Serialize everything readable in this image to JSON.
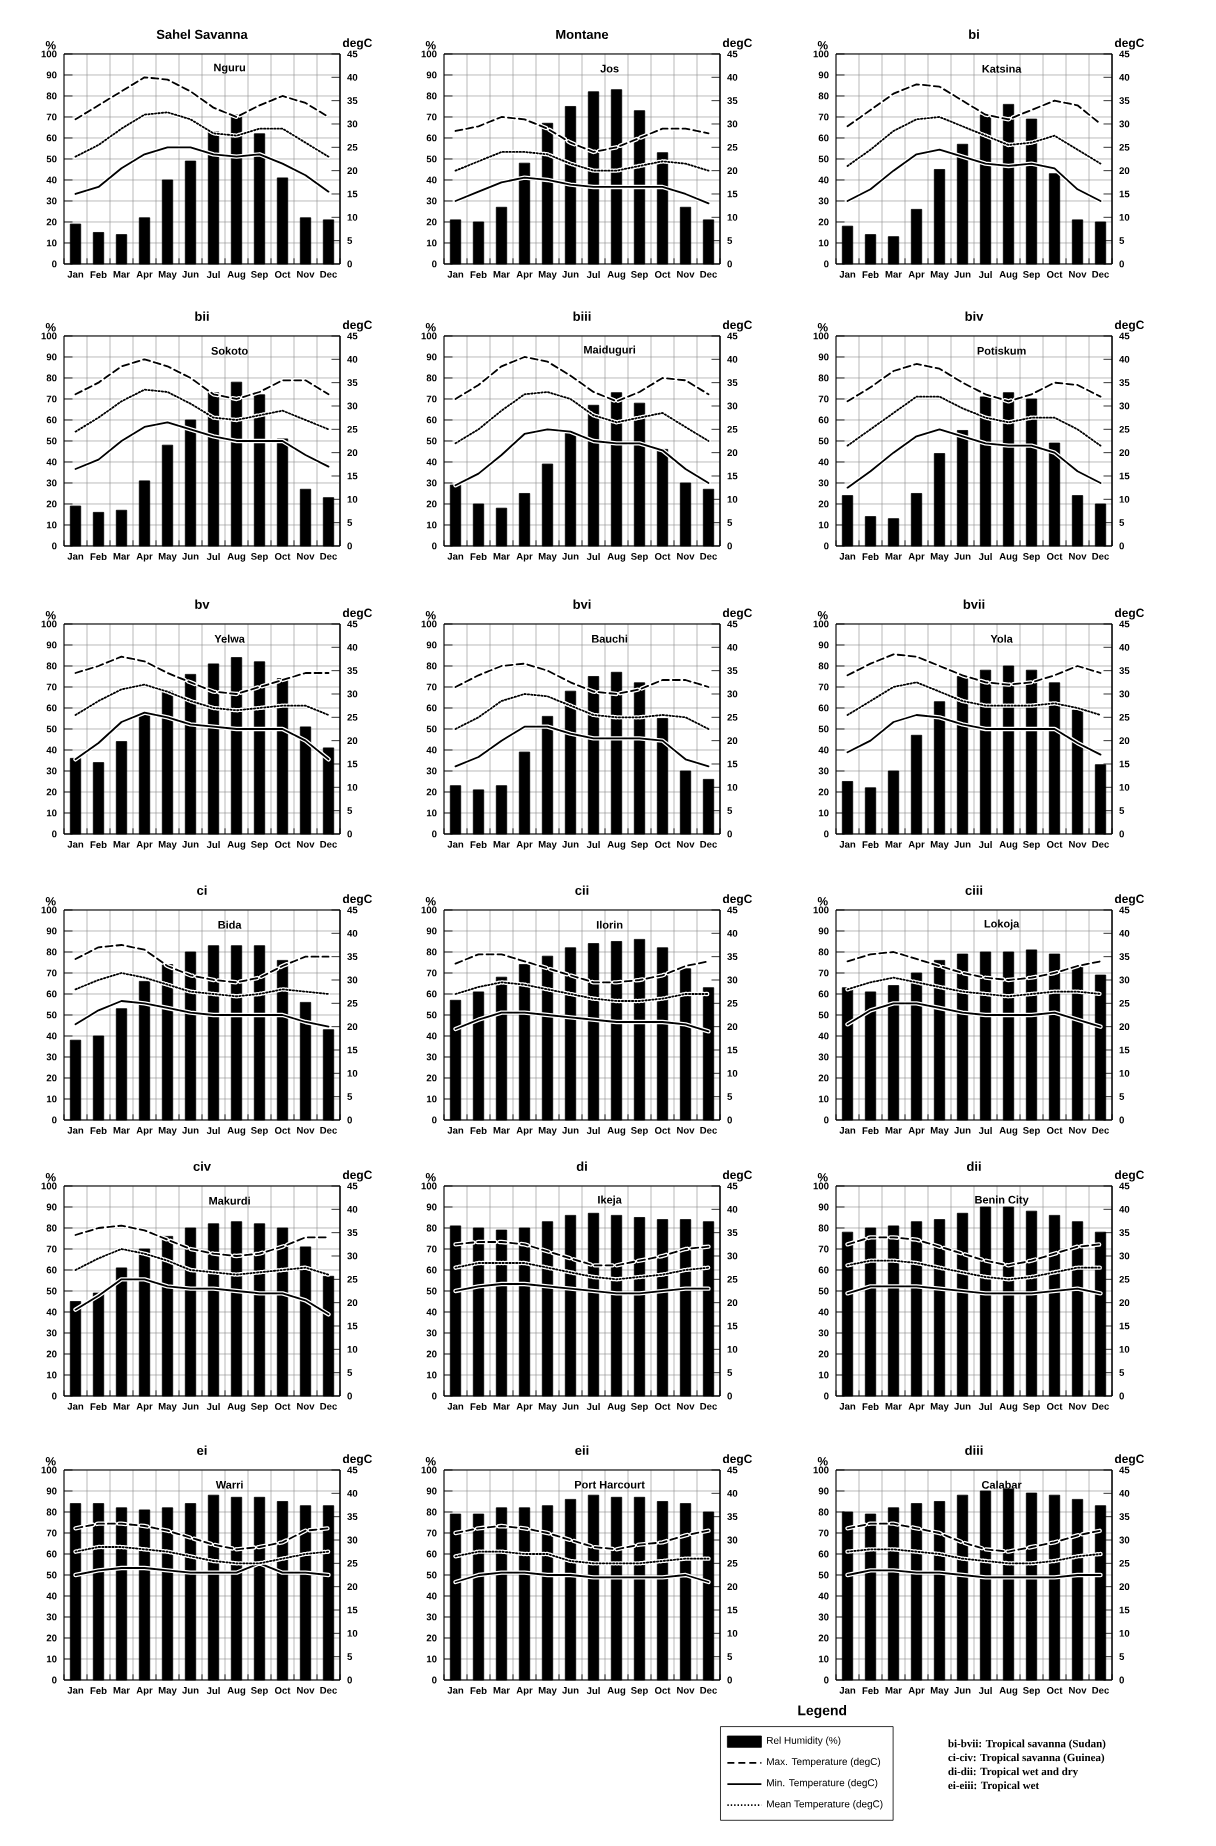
{
  "chart_data": [
    {
      "type": "bar",
      "title": "Sahel Savanna",
      "subtitle": "Nguru",
      "ylabel": "%",
      "y2label": "degC",
      "categories": [
        "Jan",
        "Feb",
        "Mar",
        "Apr",
        "May",
        "Jun",
        "Jul",
        "Aug",
        "Sep",
        "Oct",
        "Nov",
        "Dec"
      ],
      "ylim": [
        0,
        100
      ],
      "yticks": [
        0,
        10,
        20,
        30,
        40,
        50,
        60,
        70,
        80,
        90,
        100
      ],
      "y2lim": [
        0,
        45
      ],
      "y2ticks": [
        0,
        5,
        10,
        15,
        20,
        25,
        30,
        35,
        40,
        45
      ],
      "grid": true,
      "series": [
        {
          "color": "#000000",
          "values": [
            19,
            15,
            14,
            22,
            40,
            49,
            63,
            71,
            62,
            41,
            22,
            21
          ]
        },
        {
          "type": "line",
          "axis": "y2",
          "line_style": "dashed",
          "color": "#000000",
          "values": [
            31,
            34,
            37,
            40,
            39.5,
            37,
            33.5,
            31.5,
            34,
            36,
            34.5,
            31.5
          ]
        },
        {
          "type": "line",
          "axis": "y2",
          "line_style": "solid",
          "color": "#000000",
          "values": [
            15,
            16.5,
            20.5,
            23.5,
            25,
            25,
            23.5,
            23,
            23.5,
            21.5,
            19,
            15.5
          ]
        },
        {
          "type": "line",
          "axis": "y2",
          "line_style": "dotted",
          "color": "#000000",
          "values": [
            23,
            25.5,
            29,
            32,
            32.5,
            31,
            28,
            27.5,
            29,
            29,
            26,
            23
          ]
        }
      ]
    },
    {
      "type": "bar",
      "title": "Montane",
      "subtitle": "Jos",
      "ylabel": "%",
      "y2label": "degC",
      "categories": [
        "Jan",
        "Feb",
        "Mar",
        "Apr",
        "May",
        "Jun",
        "Jul",
        "Aug",
        "Sep",
        "Oct",
        "Nov",
        "Dec"
      ],
      "ylim": [
        0,
        100
      ],
      "yticks": [
        0,
        10,
        20,
        30,
        40,
        50,
        60,
        70,
        80,
        90,
        100
      ],
      "y2lim": [
        0,
        45
      ],
      "y2ticks": [
        0,
        5,
        10,
        15,
        20,
        25,
        30,
        35,
        40,
        45
      ],
      "grid": true,
      "series": [
        {
          "color": "#000000",
          "values": [
            21,
            20,
            27,
            48,
            67,
            75,
            82,
            83,
            73,
            53,
            27,
            21
          ]
        },
        {
          "type": "line",
          "axis": "y2",
          "line_style": "dashed",
          "color": "#000000",
          "values": [
            28.5,
            29.5,
            31.5,
            31,
            29,
            26,
            24,
            25,
            27,
            29,
            29,
            28
          ]
        },
        {
          "type": "line",
          "axis": "y2",
          "line_style": "solid",
          "color": "#000000",
          "values": [
            13.5,
            15.5,
            17.5,
            18.5,
            18,
            17,
            16.5,
            16.5,
            16.5,
            16.5,
            15,
            13
          ]
        },
        {
          "type": "line",
          "axis": "y2",
          "line_style": "dotted",
          "color": "#000000",
          "values": [
            20,
            22,
            24,
            24,
            23.5,
            21.5,
            20,
            20,
            21,
            22,
            21.5,
            20
          ]
        }
      ]
    },
    {
      "type": "bar",
      "title": "bi",
      "subtitle": "Katsina",
      "ylabel": "%",
      "y2label": "degC",
      "categories": [
        "Jan",
        "Feb",
        "Mar",
        "Apr",
        "May",
        "Jun",
        "Jul",
        "Aug",
        "Sep",
        "Oct",
        "Nov",
        "Dec"
      ],
      "ylim": [
        0,
        100
      ],
      "yticks": [
        0,
        10,
        20,
        30,
        40,
        50,
        60,
        70,
        80,
        90,
        100
      ],
      "y2lim": [
        0,
        45
      ],
      "y2ticks": [
        0,
        5,
        10,
        15,
        20,
        25,
        30,
        35,
        40,
        45
      ],
      "grid": true,
      "series": [
        {
          "color": "#000000",
          "values": [
            18,
            14,
            13,
            26,
            45,
            57,
            71,
            76,
            69,
            43,
            21,
            20
          ]
        },
        {
          "type": "line",
          "axis": "y2",
          "line_style": "dashed",
          "color": "#000000",
          "values": [
            29.5,
            33,
            36.5,
            38.5,
            38,
            35,
            32,
            31,
            33,
            35,
            34,
            30
          ]
        },
        {
          "type": "line",
          "axis": "y2",
          "line_style": "solid",
          "color": "#000000",
          "values": [
            13.5,
            16,
            20,
            23.5,
            24.5,
            23,
            21.5,
            21,
            21.5,
            20.5,
            16,
            13.5
          ]
        },
        {
          "type": "line",
          "axis": "y2",
          "line_style": "dotted",
          "color": "#000000",
          "values": [
            21,
            24.5,
            28.5,
            31,
            31.5,
            29.5,
            27.5,
            25.5,
            26,
            27.5,
            24.5,
            21.5
          ]
        }
      ]
    },
    {
      "type": "bar",
      "title": "bii",
      "subtitle": "Sokoto",
      "ylabel": "%",
      "y2label": "degC",
      "categories": [
        "Jan",
        "Feb",
        "Mar",
        "Apr",
        "May",
        "Jun",
        "Jul",
        "Aug",
        "Sep",
        "Oct",
        "Nov",
        "Dec"
      ],
      "ylim": [
        0,
        100
      ],
      "yticks": [
        0,
        10,
        20,
        30,
        40,
        50,
        60,
        70,
        80,
        90,
        100
      ],
      "y2lim": [
        0,
        45
      ],
      "y2ticks": [
        0,
        5,
        10,
        15,
        20,
        25,
        30,
        35,
        40,
        45
      ],
      "grid": true,
      "series": [
        {
          "color": "#000000",
          "values": [
            19,
            16,
            17,
            31,
            48,
            60,
            73,
            78,
            72,
            51,
            27,
            23
          ]
        },
        {
          "type": "line",
          "axis": "y2",
          "line_style": "dashed",
          "color": "#000000",
          "values": [
            32.5,
            35,
            38.5,
            40,
            38.5,
            36,
            32.5,
            31.5,
            33,
            35.5,
            35.5,
            32.5
          ]
        },
        {
          "type": "line",
          "axis": "y2",
          "line_style": "solid",
          "color": "#000000",
          "values": [
            16.5,
            18.5,
            22.5,
            25.5,
            26.5,
            25,
            23.5,
            22.5,
            22.5,
            22.5,
            19.5,
            17
          ]
        },
        {
          "type": "line",
          "axis": "y2",
          "line_style": "dotted",
          "color": "#000000",
          "values": [
            24.5,
            27.5,
            31,
            33.5,
            33,
            30.5,
            27.5,
            27,
            28,
            29,
            27,
            25
          ]
        }
      ]
    },
    {
      "type": "bar",
      "title": "biii",
      "subtitle": "Maiduguri",
      "ylabel": "%",
      "y2label": "degC",
      "categories": [
        "Jan",
        "Feb",
        "Mar",
        "Apr",
        "May",
        "Jun",
        "Jul",
        "Aug",
        "Sep",
        "Oct",
        "Nov",
        "Dec"
      ],
      "ylim": [
        0,
        100
      ],
      "yticks": [
        0,
        10,
        20,
        30,
        40,
        50,
        60,
        70,
        80,
        90,
        100
      ],
      "y2lim": [
        0,
        45
      ],
      "y2ticks": [
        0,
        5,
        10,
        15,
        20,
        25,
        30,
        35,
        40,
        45
      ],
      "grid": true,
      "series": [
        {
          "color": "#000000",
          "values": [
            29,
            20,
            18,
            25,
            39,
            54,
            67,
            73,
            68,
            46,
            30,
            27
          ]
        },
        {
          "type": "line",
          "axis": "y2",
          "line_style": "dashed",
          "color": "#000000",
          "values": [
            31.5,
            34.5,
            38.5,
            40.5,
            39.5,
            36.5,
            33,
            31,
            33,
            36,
            35.5,
            32.5
          ]
        },
        {
          "type": "line",
          "axis": "y2",
          "line_style": "solid",
          "color": "#000000",
          "values": [
            13,
            15.5,
            19.5,
            24,
            25,
            24.5,
            22.5,
            22,
            22,
            20.5,
            16.5,
            13.5
          ]
        },
        {
          "type": "line",
          "axis": "y2",
          "line_style": "dotted",
          "color": "#000000",
          "values": [
            22,
            25,
            29,
            32.5,
            33,
            31.5,
            28,
            26.5,
            27.5,
            28.5,
            25.5,
            22.5
          ]
        }
      ]
    },
    {
      "type": "bar",
      "title": "biv",
      "subtitle": "Potiskum",
      "ylabel": "%",
      "y2label": "degC",
      "categories": [
        "Jan",
        "Feb",
        "Mar",
        "Apr",
        "May",
        "Jun",
        "Jul",
        "Aug",
        "Sep",
        "Oct",
        "Nov",
        "Dec"
      ],
      "ylim": [
        0,
        100
      ],
      "yticks": [
        0,
        10,
        20,
        30,
        40,
        50,
        60,
        70,
        80,
        90,
        100
      ],
      "y2lim": [
        0,
        45
      ],
      "y2ticks": [
        0,
        5,
        10,
        15,
        20,
        25,
        30,
        35,
        40,
        45
      ],
      "grid": true,
      "series": [
        {
          "color": "#000000",
          "values": [
            24,
            14,
            13,
            25,
            44,
            55,
            71,
            73,
            70,
            49,
            24,
            20
          ]
        },
        {
          "type": "line",
          "axis": "y2",
          "line_style": "dashed",
          "color": "#000000",
          "values": [
            31,
            34,
            37.5,
            39,
            38,
            35,
            32.5,
            31,
            32.5,
            35,
            34.5,
            32
          ]
        },
        {
          "type": "line",
          "axis": "y2",
          "line_style": "solid",
          "color": "#000000",
          "values": [
            12.5,
            16,
            20,
            23.5,
            25,
            23.5,
            22,
            21.5,
            21.5,
            20,
            16,
            13.5
          ]
        },
        {
          "type": "line",
          "axis": "y2",
          "line_style": "dotted",
          "color": "#000000",
          "values": [
            21.5,
            25,
            28.5,
            32,
            32,
            29.5,
            27.5,
            26.5,
            27.5,
            27.5,
            25,
            21.5
          ]
        }
      ]
    },
    {
      "type": "bar",
      "title": "bv",
      "subtitle": "Yelwa",
      "ylabel": "%",
      "y2label": "degC",
      "categories": [
        "Jan",
        "Feb",
        "Mar",
        "Apr",
        "May",
        "Jun",
        "Jul",
        "Aug",
        "Sep",
        "Oct",
        "Nov",
        "Dec"
      ],
      "ylim": [
        0,
        100
      ],
      "yticks": [
        0,
        10,
        20,
        30,
        40,
        50,
        60,
        70,
        80,
        90,
        100
      ],
      "y2lim": [
        0,
        45
      ],
      "y2ticks": [
        0,
        5,
        10,
        15,
        20,
        25,
        30,
        35,
        40,
        45
      ],
      "grid": true,
      "series": [
        {
          "color": "#000000",
          "values": [
            36,
            34,
            44,
            57,
            68,
            76,
            81,
            84,
            82,
            74,
            51,
            41
          ]
        },
        {
          "type": "line",
          "axis": "y2",
          "line_style": "dashed",
          "color": "#000000",
          "values": [
            34.5,
            36,
            38,
            37,
            34.5,
            32.5,
            30.5,
            30,
            31.5,
            33,
            34.5,
            34.5
          ]
        },
        {
          "type": "line",
          "axis": "y2",
          "line_style": "solid",
          "color": "#000000",
          "values": [
            16,
            19.5,
            24,
            26,
            25,
            23.5,
            23,
            22.5,
            22.5,
            22.5,
            20,
            16
          ]
        },
        {
          "type": "line",
          "axis": "y2",
          "line_style": "dotted",
          "color": "#000000",
          "values": [
            25.5,
            28.5,
            31,
            32,
            30.5,
            28.5,
            27,
            26.5,
            27,
            27.5,
            27.5,
            25.5
          ]
        }
      ]
    },
    {
      "type": "bar",
      "title": "bvi",
      "subtitle": "Bauchi",
      "ylabel": "%",
      "y2label": "degC",
      "categories": [
        "Jan",
        "Feb",
        "Mar",
        "Apr",
        "May",
        "Jun",
        "Jul",
        "Aug",
        "Sep",
        "Oct",
        "Nov",
        "Dec"
      ],
      "ylim": [
        0,
        100
      ],
      "yticks": [
        0,
        10,
        20,
        30,
        40,
        50,
        60,
        70,
        80,
        90,
        100
      ],
      "y2lim": [
        0,
        45
      ],
      "y2ticks": [
        0,
        5,
        10,
        15,
        20,
        25,
        30,
        35,
        40,
        45
      ],
      "grid": true,
      "series": [
        {
          "color": "#000000",
          "values": [
            23,
            21,
            23,
            39,
            56,
            68,
            75,
            77,
            72,
            55,
            30,
            26
          ]
        },
        {
          "type": "line",
          "axis": "y2",
          "line_style": "dashed",
          "color": "#000000",
          "values": [
            31.5,
            34,
            36,
            36.5,
            35,
            32.5,
            30.5,
            30,
            31,
            33,
            33,
            31.5
          ]
        },
        {
          "type": "line",
          "axis": "y2",
          "line_style": "solid",
          "color": "#000000",
          "values": [
            14.5,
            16.5,
            20,
            23,
            23,
            21.5,
            20.5,
            20.5,
            20.5,
            20,
            16,
            14.5
          ]
        },
        {
          "type": "line",
          "axis": "y2",
          "line_style": "dotted",
          "color": "#000000",
          "values": [
            22.5,
            25,
            28.5,
            30,
            29.5,
            27.5,
            25.5,
            25,
            25,
            25.5,
            25,
            22.5
          ]
        }
      ]
    },
    {
      "type": "bar",
      "title": "bvii",
      "subtitle": "Yola",
      "ylabel": "%",
      "y2label": "degC",
      "categories": [
        "Jan",
        "Feb",
        "Mar",
        "Apr",
        "May",
        "Jun",
        "Jul",
        "Aug",
        "Sep",
        "Oct",
        "Nov",
        "Dec"
      ],
      "ylim": [
        0,
        100
      ],
      "yticks": [
        0,
        10,
        20,
        30,
        40,
        50,
        60,
        70,
        80,
        90,
        100
      ],
      "y2lim": [
        0,
        45
      ],
      "y2ticks": [
        0,
        5,
        10,
        15,
        20,
        25,
        30,
        35,
        40,
        45
      ],
      "grid": true,
      "series": [
        {
          "color": "#000000",
          "values": [
            25,
            22,
            30,
            47,
            63,
            75,
            78,
            80,
            78,
            72,
            59,
            33
          ]
        },
        {
          "type": "line",
          "axis": "y2",
          "line_style": "dashed",
          "color": "#000000",
          "values": [
            34,
            36.5,
            38.5,
            38,
            36,
            34,
            32.5,
            32,
            32.5,
            34,
            36,
            34.5
          ]
        },
        {
          "type": "line",
          "axis": "y2",
          "line_style": "solid",
          "color": "#000000",
          "values": [
            17.5,
            20,
            24,
            25.5,
            25,
            23.5,
            22.5,
            22.5,
            22.5,
            22.5,
            19.5,
            17
          ]
        },
        {
          "type": "line",
          "axis": "y2",
          "line_style": "dotted",
          "color": "#000000",
          "values": [
            25.5,
            28.5,
            31.5,
            32.5,
            30.5,
            28.5,
            27.5,
            27.5,
            27.5,
            28,
            27,
            25.5
          ]
        }
      ]
    },
    {
      "type": "bar",
      "title": "ci",
      "subtitle": "Bida",
      "ylabel": "%",
      "y2label": "degC",
      "categories": [
        "Jan",
        "Feb",
        "Mar",
        "Apr",
        "May",
        "Jun",
        "Jul",
        "Aug",
        "Sep",
        "Oct",
        "Nov",
        "Dec"
      ],
      "ylim": [
        0,
        100
      ],
      "yticks": [
        0,
        10,
        20,
        30,
        40,
        50,
        60,
        70,
        80,
        90,
        100
      ],
      "y2lim": [
        0,
        45
      ],
      "y2ticks": [
        0,
        5,
        10,
        15,
        20,
        25,
        30,
        35,
        40,
        45
      ],
      "grid": true,
      "series": [
        {
          "color": "#000000",
          "values": [
            38,
            40,
            53,
            66,
            74,
            80,
            83,
            83,
            83,
            76,
            56,
            43
          ]
        },
        {
          "type": "line",
          "axis": "y2",
          "line_style": "dashed",
          "color": "#000000",
          "values": [
            34.5,
            37,
            37.5,
            36.5,
            33,
            31,
            30,
            29.5,
            30.5,
            33,
            35,
            35
          ]
        },
        {
          "type": "line",
          "axis": "y2",
          "line_style": "solid",
          "color": "#000000",
          "values": [
            20.5,
            23.5,
            25.5,
            25,
            24,
            23,
            22.5,
            22.5,
            22.5,
            22.5,
            21,
            20
          ]
        },
        {
          "type": "line",
          "axis": "y2",
          "line_style": "dotted",
          "color": "#000000",
          "values": [
            28,
            30,
            31.5,
            30.5,
            29,
            27.5,
            27,
            26.5,
            27,
            28,
            27.5,
            27
          ]
        }
      ]
    },
    {
      "type": "bar",
      "title": "cii",
      "subtitle": "Ilorin",
      "ylabel": "%",
      "y2label": "degC",
      "categories": [
        "Jan",
        "Feb",
        "Mar",
        "Apr",
        "May",
        "Jun",
        "Jul",
        "Aug",
        "Sep",
        "Oct",
        "Nov",
        "Dec"
      ],
      "ylim": [
        0,
        100
      ],
      "yticks": [
        0,
        10,
        20,
        30,
        40,
        50,
        60,
        70,
        80,
        90,
        100
      ],
      "y2lim": [
        0,
        45
      ],
      "y2ticks": [
        0,
        5,
        10,
        15,
        20,
        25,
        30,
        35,
        40,
        45
      ],
      "grid": true,
      "series": [
        {
          "color": "#000000",
          "values": [
            57,
            61,
            68,
            74,
            78,
            82,
            84,
            85,
            86,
            82,
            72,
            63
          ]
        },
        {
          "type": "line",
          "axis": "y2",
          "line_style": "dashed",
          "color": "#000000",
          "values": [
            33.5,
            35.5,
            35.5,
            34,
            32.5,
            31,
            29.5,
            29.5,
            30,
            31,
            33,
            34
          ]
        },
        {
          "type": "line",
          "axis": "y2",
          "line_style": "solid",
          "color": "#000000",
          "values": [
            19.5,
            21.5,
            23,
            23,
            22.5,
            22,
            21.5,
            21,
            21,
            21,
            20.5,
            19
          ]
        },
        {
          "type": "line",
          "axis": "y2",
          "line_style": "dotted",
          "color": "#000000",
          "values": [
            27,
            28.5,
            29.5,
            29,
            28,
            27,
            26,
            25.5,
            25.5,
            26,
            27,
            27
          ]
        }
      ]
    },
    {
      "type": "bar",
      "title": "ciii",
      "subtitle": "Lokoja",
      "ylabel": "%",
      "y2label": "degC",
      "categories": [
        "Jan",
        "Feb",
        "Mar",
        "Apr",
        "May",
        "Jun",
        "Jul",
        "Aug",
        "Sep",
        "Oct",
        "Nov",
        "Dec"
      ],
      "ylim": [
        0,
        100
      ],
      "yticks": [
        0,
        10,
        20,
        30,
        40,
        50,
        60,
        70,
        80,
        90,
        100
      ],
      "y2lim": [
        0,
        45
      ],
      "y2ticks": [
        0,
        5,
        10,
        15,
        20,
        25,
        30,
        35,
        40,
        45
      ],
      "grid": true,
      "series": [
        {
          "color": "#000000",
          "values": [
            63,
            61,
            64,
            70,
            76,
            79,
            80,
            80,
            81,
            79,
            73,
            69
          ]
        },
        {
          "type": "line",
          "axis": "y2",
          "line_style": "dashed",
          "color": "#000000",
          "values": [
            34,
            35.5,
            36,
            34.5,
            33,
            31.5,
            30.5,
            30,
            30.5,
            31.5,
            33,
            34
          ]
        },
        {
          "type": "line",
          "axis": "y2",
          "line_style": "solid",
          "color": "#000000",
          "values": [
            20.5,
            23.5,
            25,
            25,
            24,
            23,
            22.5,
            22.5,
            22.5,
            23,
            21.5,
            20
          ]
        },
        {
          "type": "line",
          "axis": "y2",
          "line_style": "dotted",
          "color": "#000000",
          "values": [
            28,
            29.5,
            30.5,
            29.5,
            28.5,
            27.5,
            27,
            26.5,
            27,
            27.5,
            27.5,
            27
          ]
        }
      ]
    },
    {
      "type": "bar",
      "title": "civ",
      "subtitle": "Makurdi",
      "ylabel": "%",
      "y2label": "degC",
      "categories": [
        "Jan",
        "Feb",
        "Mar",
        "Apr",
        "May",
        "Jun",
        "Jul",
        "Aug",
        "Sep",
        "Oct",
        "Nov",
        "Dec"
      ],
      "ylim": [
        0,
        100
      ],
      "yticks": [
        0,
        10,
        20,
        30,
        40,
        50,
        60,
        70,
        80,
        90,
        100
      ],
      "y2lim": [
        0,
        45
      ],
      "y2ticks": [
        0,
        5,
        10,
        15,
        20,
        25,
        30,
        35,
        40,
        45
      ],
      "grid": true,
      "series": [
        {
          "color": "#000000",
          "values": [
            45,
            49,
            61,
            70,
            76,
            80,
            82,
            83,
            82,
            80,
            71,
            57
          ]
        },
        {
          "type": "line",
          "axis": "y2",
          "line_style": "dashed",
          "color": "#000000",
          "values": [
            34.5,
            36,
            36.5,
            35.5,
            33.5,
            31.5,
            30.5,
            30,
            30.5,
            32,
            34,
            34
          ]
        },
        {
          "type": "line",
          "axis": "y2",
          "line_style": "solid",
          "color": "#000000",
          "values": [
            18.5,
            21.5,
            25,
            25,
            23.5,
            23,
            23,
            22.5,
            22,
            22,
            20.5,
            17.5
          ]
        },
        {
          "type": "line",
          "axis": "y2",
          "line_style": "dotted",
          "color": "#000000",
          "values": [
            27,
            29.5,
            31.5,
            30.5,
            29,
            27,
            26.5,
            26,
            26.5,
            27,
            27.5,
            26
          ]
        }
      ]
    },
    {
      "type": "bar",
      "title": "di",
      "subtitle": "Ikeja",
      "ylabel": "%",
      "y2label": "degC",
      "categories": [
        "Jan",
        "Feb",
        "Mar",
        "Apr",
        "May",
        "Jun",
        "Jul",
        "Aug",
        "Sep",
        "Oct",
        "Nov",
        "Dec"
      ],
      "ylim": [
        0,
        100
      ],
      "yticks": [
        0,
        10,
        20,
        30,
        40,
        50,
        60,
        70,
        80,
        90,
        100
      ],
      "y2lim": [
        0,
        45
      ],
      "y2ticks": [
        0,
        5,
        10,
        15,
        20,
        25,
        30,
        35,
        40,
        45
      ],
      "grid": true,
      "series": [
        {
          "color": "#000000",
          "values": [
            81,
            80,
            79,
            80,
            83,
            86,
            87,
            86,
            85,
            84,
            84,
            83
          ]
        },
        {
          "type": "line",
          "axis": "y2",
          "line_style": "dashed",
          "color": "#000000",
          "values": [
            32.5,
            33,
            33,
            32.5,
            31,
            29.5,
            28,
            28,
            29,
            30,
            31.5,
            32
          ]
        },
        {
          "type": "line",
          "axis": "y2",
          "line_style": "solid",
          "color": "#000000",
          "values": [
            22.5,
            23.5,
            24,
            24,
            23.5,
            23,
            22.5,
            22,
            22,
            22.5,
            23,
            23
          ]
        },
        {
          "type": "line",
          "axis": "y2",
          "line_style": "dotted",
          "color": "#000000",
          "values": [
            27.5,
            28.5,
            28.5,
            28.5,
            27.5,
            26.5,
            25.5,
            25,
            25.5,
            26,
            27,
            27.5
          ]
        }
      ]
    },
    {
      "type": "bar",
      "title": "dii",
      "subtitle": "Benin City",
      "ylabel": "%",
      "y2label": "degC",
      "categories": [
        "Jan",
        "Feb",
        "Mar",
        "Apr",
        "May",
        "Jun",
        "Jul",
        "Aug",
        "Sep",
        "Oct",
        "Nov",
        "Dec"
      ],
      "ylim": [
        0,
        100
      ],
      "yticks": [
        0,
        10,
        20,
        30,
        40,
        50,
        60,
        70,
        80,
        90,
        100
      ],
      "y2lim": [
        0,
        45
      ],
      "y2ticks": [
        0,
        5,
        10,
        15,
        20,
        25,
        30,
        35,
        40,
        45
      ],
      "grid": true,
      "series": [
        {
          "color": "#000000",
          "values": [
            78,
            80,
            81,
            83,
            84,
            87,
            90,
            90,
            88,
            86,
            83,
            78
          ]
        },
        {
          "type": "line",
          "axis": "y2",
          "line_style": "dashed",
          "color": "#000000",
          "values": [
            32.5,
            34,
            34,
            33.5,
            32,
            30.5,
            29,
            28,
            29,
            30.5,
            32,
            32.5
          ]
        },
        {
          "type": "line",
          "axis": "y2",
          "line_style": "solid",
          "color": "#000000",
          "values": [
            22,
            23.5,
            23.5,
            23.5,
            23,
            22.5,
            22,
            22,
            22,
            22.5,
            23,
            22
          ]
        },
        {
          "type": "line",
          "axis": "y2",
          "line_style": "dotted",
          "color": "#000000",
          "values": [
            28,
            29,
            29,
            28.5,
            27.5,
            26.5,
            25.5,
            25,
            25.5,
            26.5,
            27.5,
            27.5
          ]
        }
      ]
    },
    {
      "type": "bar",
      "title": "ei",
      "subtitle": "Warri",
      "ylabel": "%",
      "y2label": "degC",
      "categories": [
        "Jan",
        "Feb",
        "Mar",
        "Apr",
        "May",
        "Jun",
        "Jul",
        "Aug",
        "Sep",
        "Oct",
        "Nov",
        "Dec"
      ],
      "ylim": [
        0,
        100
      ],
      "yticks": [
        0,
        10,
        20,
        30,
        40,
        50,
        60,
        70,
        80,
        90,
        100
      ],
      "y2lim": [
        0,
        45
      ],
      "y2ticks": [
        0,
        5,
        10,
        15,
        20,
        25,
        30,
        35,
        40,
        45
      ],
      "grid": true,
      "series": [
        {
          "color": "#000000",
          "values": [
            84,
            84,
            82,
            81,
            82,
            84,
            88,
            87,
            87,
            85,
            83,
            83
          ]
        },
        {
          "type": "line",
          "axis": "y2",
          "line_style": "dashed",
          "color": "#000000",
          "values": [
            32.5,
            33.5,
            33.5,
            33,
            32,
            30.5,
            29,
            28,
            28.5,
            29.5,
            32,
            32.5
          ]
        },
        {
          "type": "line",
          "axis": "y2",
          "line_style": "solid",
          "color": "#000000",
          "values": [
            22.5,
            23.5,
            24,
            24,
            23.5,
            23,
            23,
            23,
            25,
            23,
            23,
            22.5
          ]
        },
        {
          "type": "line",
          "axis": "y2",
          "line_style": "dotted",
          "color": "#000000",
          "values": [
            27.5,
            28.5,
            28.5,
            28,
            27.5,
            26.5,
            25.5,
            25,
            25,
            26,
            27,
            27.5
          ]
        }
      ]
    },
    {
      "type": "bar",
      "title": "eii",
      "subtitle": "Port Harcourt",
      "ylabel": "%",
      "y2label": "degC",
      "categories": [
        "Jan",
        "Feb",
        "Mar",
        "Apr",
        "May",
        "Jun",
        "Jul",
        "Aug",
        "Sep",
        "Oct",
        "Nov",
        "Dec"
      ],
      "ylim": [
        0,
        100
      ],
      "yticks": [
        0,
        10,
        20,
        30,
        40,
        50,
        60,
        70,
        80,
        90,
        100
      ],
      "y2lim": [
        0,
        45
      ],
      "y2ticks": [
        0,
        5,
        10,
        15,
        20,
        25,
        30,
        35,
        40,
        45
      ],
      "grid": true,
      "series": [
        {
          "color": "#000000",
          "values": [
            79,
            79,
            82,
            82,
            83,
            86,
            88,
            87,
            87,
            85,
            84,
            80
          ]
        },
        {
          "type": "line",
          "axis": "y2",
          "line_style": "dashed",
          "color": "#000000",
          "values": [
            31.5,
            32.5,
            33,
            32.5,
            31.5,
            30,
            28.5,
            28,
            29,
            29.5,
            31,
            32
          ]
        },
        {
          "type": "line",
          "axis": "y2",
          "line_style": "solid",
          "color": "#000000",
          "values": [
            21,
            22.5,
            23,
            23,
            22.5,
            22.5,
            22,
            22,
            22,
            22,
            22.5,
            21
          ]
        },
        {
          "type": "line",
          "axis": "y2",
          "line_style": "dotted",
          "color": "#000000",
          "values": [
            26.5,
            27.5,
            27.5,
            27,
            27,
            25.5,
            25,
            25,
            25,
            25.5,
            26,
            26
          ]
        }
      ]
    },
    {
      "type": "bar",
      "title": "diii",
      "subtitle": "Calabar",
      "ylabel": "%",
      "y2label": "degC",
      "categories": [
        "Jan",
        "Feb",
        "Mar",
        "Apr",
        "May",
        "Jun",
        "Jul",
        "Aug",
        "Sep",
        "Oct",
        "Nov",
        "Dec"
      ],
      "ylim": [
        0,
        100
      ],
      "yticks": [
        0,
        10,
        20,
        30,
        40,
        50,
        60,
        70,
        80,
        90,
        100
      ],
      "y2lim": [
        0,
        45
      ],
      "y2ticks": [
        0,
        5,
        10,
        15,
        20,
        25,
        30,
        35,
        40,
        45
      ],
      "grid": true,
      "legend": "bottom",
      "legend_title": "Legend",
      "annotations": [
        "bi-bvii: Tropical savanna (Sudan)",
        "ci-civ: Tropical savanna (Guinea)",
        "di-dii: Tropical wet and dry",
        "ei-eiii: Tropical wet"
      ],
      "series": [
        {
          "name": "Rel Humidity (%)",
          "color": "#000000",
          "values": [
            80,
            79,
            82,
            84,
            85,
            88,
            90,
            91,
            89,
            88,
            86,
            83
          ]
        },
        {
          "name": "Max. Temperature (degC)",
          "type": "line",
          "axis": "y2",
          "line_style": "dashed",
          "color": "#000000",
          "values": [
            32.5,
            33.5,
            33.5,
            32.5,
            31.5,
            29.5,
            28,
            27.5,
            28.5,
            29.5,
            31,
            32
          ]
        },
        {
          "name": "Min. Temperature (degC)",
          "type": "line",
          "axis": "y2",
          "line_style": "solid",
          "color": "#000000",
          "values": [
            22.5,
            23.5,
            23.5,
            23,
            23,
            22.5,
            22,
            22,
            22,
            22,
            22.5,
            22.5
          ]
        },
        {
          "name": "Mean Temperature (degC)",
          "type": "line",
          "axis": "y2",
          "line_style": "dotted",
          "color": "#000000",
          "values": [
            27.5,
            28,
            28,
            27.5,
            27,
            26,
            25.5,
            25,
            25,
            25.5,
            26.5,
            27
          ]
        }
      ]
    }
  ]
}
